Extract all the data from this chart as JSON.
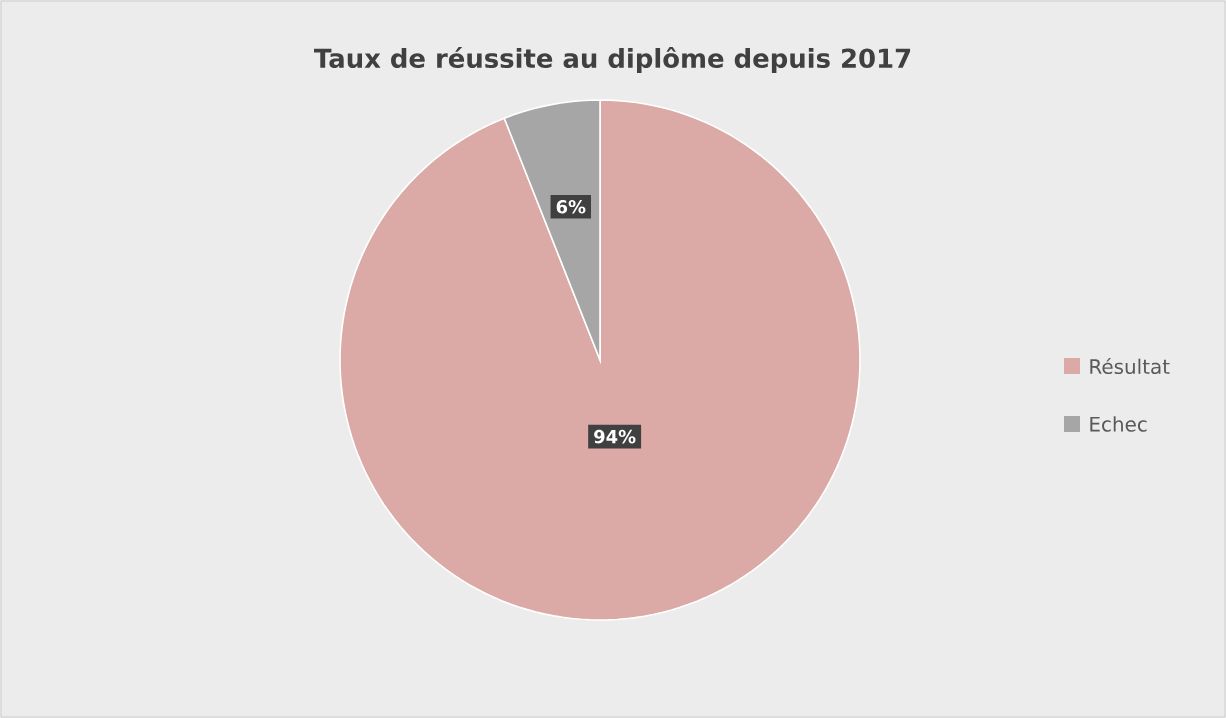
{
  "chart_data": {
    "type": "pie",
    "title": "Taux de réussite au diplôme depuis 2017",
    "categories": [
      "Résultat",
      "Echec"
    ],
    "values": [
      94,
      6
    ],
    "colors": [
      "#dba9a6",
      "#a6a6a6"
    ],
    "value_labels": [
      "94%",
      "6%"
    ],
    "legend": "right"
  }
}
